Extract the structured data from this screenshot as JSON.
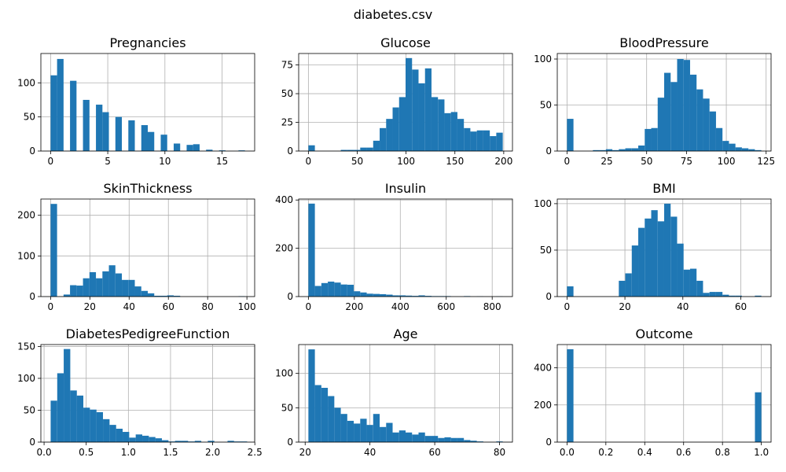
{
  "figure": {
    "title": "diabetes.csv"
  },
  "colors": {
    "bar": "#1f77b4",
    "grid": "#b0b0b0",
    "axis": "#000000"
  },
  "chart_data": [
    {
      "type": "bar",
      "title": "Pregnancies",
      "grid": true,
      "xlim": [
        -0.85,
        17.85
      ],
      "ylim": [
        0,
        143
      ],
      "xticks": [
        0,
        5,
        10,
        15
      ],
      "yticks": [
        0,
        50,
        100
      ],
      "bin_width": 0.567,
      "bins": [
        [
          0,
          111
        ],
        [
          0.567,
          135
        ],
        [
          1.7,
          103
        ],
        [
          2.833,
          75
        ],
        [
          3.967,
          68
        ],
        [
          4.533,
          57
        ],
        [
          5.667,
          50
        ],
        [
          6.8,
          45
        ],
        [
          7.933,
          38
        ],
        [
          8.5,
          28
        ],
        [
          9.633,
          24
        ],
        [
          10.767,
          11
        ],
        [
          11.9,
          9
        ],
        [
          12.467,
          10
        ],
        [
          13.6,
          2
        ],
        [
          14.733,
          1
        ],
        [
          16.433,
          1
        ]
      ]
    },
    {
      "type": "bar",
      "title": "Glucose",
      "grid": true,
      "xlim": [
        -9.95,
        208.95
      ],
      "ylim": [
        0,
        85
      ],
      "xticks": [
        0,
        50,
        100,
        150,
        200
      ],
      "yticks": [
        0,
        25,
        50,
        75
      ],
      "bin_width": 6.633,
      "bins": [
        [
          0,
          5
        ],
        [
          33.167,
          1
        ],
        [
          39.8,
          1
        ],
        [
          46.433,
          1
        ],
        [
          53.067,
          3
        ],
        [
          59.7,
          3
        ],
        [
          66.333,
          9
        ],
        [
          72.967,
          20
        ],
        [
          79.6,
          28
        ],
        [
          86.233,
          38
        ],
        [
          92.867,
          47
        ],
        [
          99.5,
          81
        ],
        [
          106.133,
          71
        ],
        [
          112.767,
          59
        ],
        [
          119.4,
          72
        ],
        [
          126.033,
          47
        ],
        [
          132.667,
          45
        ],
        [
          139.3,
          33
        ],
        [
          145.933,
          34
        ],
        [
          152.567,
          28
        ],
        [
          159.2,
          20
        ],
        [
          165.833,
          17
        ],
        [
          172.467,
          18
        ],
        [
          179.1,
          18
        ],
        [
          185.733,
          13
        ],
        [
          192.367,
          16
        ]
      ]
    },
    {
      "type": "bar",
      "title": "BloodPressure",
      "grid": true,
      "xlim": [
        -6.1,
        128.1
      ],
      "ylim": [
        0,
        106
      ],
      "xticks": [
        0,
        25,
        50,
        75,
        100,
        125
      ],
      "yticks": [
        0,
        50,
        100
      ],
      "bin_width": 4.067,
      "bins": [
        [
          0,
          35
        ],
        [
          16.267,
          1
        ],
        [
          20.333,
          1
        ],
        [
          24.4,
          2
        ],
        [
          28.467,
          1
        ],
        [
          32.533,
          2
        ],
        [
          36.6,
          3
        ],
        [
          40.667,
          3
        ],
        [
          44.733,
          6
        ],
        [
          48.8,
          24
        ],
        [
          52.867,
          25
        ],
        [
          56.933,
          58
        ],
        [
          61,
          85
        ],
        [
          65.067,
          75
        ],
        [
          69.133,
          100
        ],
        [
          73.2,
          99
        ],
        [
          77.267,
          83
        ],
        [
          81.333,
          67
        ],
        [
          85.4,
          57
        ],
        [
          89.467,
          43
        ],
        [
          93.533,
          25
        ],
        [
          97.6,
          11
        ],
        [
          101.667,
          8
        ],
        [
          105.733,
          4
        ],
        [
          109.8,
          3
        ],
        [
          113.867,
          2
        ],
        [
          117.933,
          1
        ]
      ]
    },
    {
      "type": "bar",
      "title": "SkinThickness",
      "grid": true,
      "xlim": [
        -4.95,
        103.95
      ],
      "ylim": [
        0,
        240
      ],
      "xticks": [
        0,
        20,
        40,
        60,
        80,
        100
      ],
      "yticks": [
        0,
        100,
        200
      ],
      "bin_width": 3.3,
      "bins": [
        [
          0,
          228
        ],
        [
          6.6,
          5
        ],
        [
          9.9,
          28
        ],
        [
          13.2,
          27
        ],
        [
          16.5,
          45
        ],
        [
          19.8,
          60
        ],
        [
          23.1,
          45
        ],
        [
          26.4,
          62
        ],
        [
          29.7,
          77
        ],
        [
          33,
          57
        ],
        [
          36.3,
          41
        ],
        [
          39.6,
          41
        ],
        [
          42.9,
          25
        ],
        [
          46.2,
          14
        ],
        [
          49.5,
          8
        ],
        [
          52.8,
          2
        ],
        [
          56.1,
          2
        ],
        [
          59.4,
          3
        ],
        [
          62.7,
          2
        ],
        [
          95.7,
          1
        ]
      ]
    },
    {
      "type": "bar",
      "title": "Insulin",
      "grid": true,
      "xlim": [
        -42.3,
        888.3
      ],
      "ylim": [
        0,
        404
      ],
      "xticks": [
        0,
        200,
        400,
        600,
        800
      ],
      "yticks": [
        0,
        200,
        400
      ],
      "bin_width": 28.2,
      "bins": [
        [
          0,
          385
        ],
        [
          28.2,
          44
        ],
        [
          56.4,
          56
        ],
        [
          84.6,
          62
        ],
        [
          112.8,
          58
        ],
        [
          141,
          50
        ],
        [
          169.2,
          49
        ],
        [
          197.4,
          22
        ],
        [
          225.6,
          17
        ],
        [
          253.8,
          12
        ],
        [
          282,
          11
        ],
        [
          310.2,
          10
        ],
        [
          338.4,
          8
        ],
        [
          366.6,
          5
        ],
        [
          394.8,
          5
        ],
        [
          423,
          4
        ],
        [
          451.2,
          3
        ],
        [
          479.4,
          5
        ],
        [
          507.6,
          3
        ],
        [
          535.8,
          2
        ],
        [
          564,
          2
        ],
        [
          592.2,
          2
        ],
        [
          676.8,
          2
        ],
        [
          733.2,
          1
        ],
        [
          817.8,
          1
        ]
      ]
    },
    {
      "type": "bar",
      "title": "BMI",
      "grid": true,
      "xlim": [
        -3.355,
        70.455
      ],
      "ylim": [
        0,
        105
      ],
      "xticks": [
        0,
        20,
        40,
        60
      ],
      "yticks": [
        0,
        50,
        100
      ],
      "bin_width": 2.237,
      "bins": [
        [
          0,
          11
        ],
        [
          17.89,
          17
        ],
        [
          20.127,
          25
        ],
        [
          22.363,
          55
        ],
        [
          24.6,
          74
        ],
        [
          26.837,
          84
        ],
        [
          29.073,
          93
        ],
        [
          31.31,
          81
        ],
        [
          33.547,
          100
        ],
        [
          35.783,
          86
        ],
        [
          38.02,
          57
        ],
        [
          40.257,
          29
        ],
        [
          42.493,
          30
        ],
        [
          44.73,
          17
        ],
        [
          46.967,
          4
        ],
        [
          49.203,
          5
        ],
        [
          51.44,
          5
        ],
        [
          53.677,
          2
        ],
        [
          55.913,
          1
        ],
        [
          58.15,
          1
        ],
        [
          64.86,
          1
        ]
      ]
    },
    {
      "type": "bar",
      "title": "DiabetesPedigreeFunction",
      "grid": true,
      "xlim": [
        -0.038,
        2.498
      ],
      "ylim": [
        0,
        153
      ],
      "xticks": [
        0.0,
        0.5,
        1.0,
        1.5,
        2.0,
        2.5
      ],
      "yticks": [
        0,
        50,
        100,
        150
      ],
      "bin_width": 0.0777,
      "bins": [
        [
          0.078,
          65
        ],
        [
          0.156,
          108
        ],
        [
          0.233,
          146
        ],
        [
          0.311,
          81
        ],
        [
          0.388,
          73
        ],
        [
          0.466,
          54
        ],
        [
          0.544,
          51
        ],
        [
          0.621,
          47
        ],
        [
          0.699,
          36
        ],
        [
          0.777,
          27
        ],
        [
          0.854,
          21
        ],
        [
          0.932,
          16
        ],
        [
          1.01,
          7
        ],
        [
          1.087,
          12
        ],
        [
          1.165,
          10
        ],
        [
          1.243,
          8
        ],
        [
          1.32,
          6
        ],
        [
          1.398,
          3
        ],
        [
          1.476,
          1
        ],
        [
          1.553,
          2
        ],
        [
          1.631,
          2
        ],
        [
          1.709,
          1
        ],
        [
          1.787,
          2
        ],
        [
          1.942,
          2
        ],
        [
          2.176,
          2
        ],
        [
          2.253,
          1
        ],
        [
          2.331,
          1
        ]
      ]
    },
    {
      "type": "bar",
      "title": "Age",
      "grid": true,
      "xlim": [
        18,
        84
      ],
      "ylim": [
        0,
        142
      ],
      "xticks": [
        20,
        40,
        60,
        80
      ],
      "yticks": [
        0,
        50,
        100
      ],
      "bin_width": 2,
      "bins": [
        [
          21,
          135
        ],
        [
          23,
          83
        ],
        [
          25,
          79
        ],
        [
          27,
          67
        ],
        [
          29,
          50
        ],
        [
          31,
          41
        ],
        [
          33,
          31
        ],
        [
          35,
          27
        ],
        [
          37,
          34
        ],
        [
          39,
          25
        ],
        [
          41,
          41
        ],
        [
          43,
          22
        ],
        [
          45,
          28
        ],
        [
          47,
          14
        ],
        [
          49,
          17
        ],
        [
          51,
          14
        ],
        [
          53,
          11
        ],
        [
          55,
          14
        ],
        [
          57,
          9
        ],
        [
          59,
          9
        ],
        [
          61,
          6
        ],
        [
          63,
          7
        ],
        [
          65,
          6
        ],
        [
          67,
          6
        ],
        [
          69,
          3
        ],
        [
          71,
          2
        ],
        [
          73,
          1
        ],
        [
          79,
          1
        ]
      ]
    },
    {
      "type": "bar",
      "title": "Outcome",
      "grid": true,
      "xlim": [
        -0.05,
        1.05
      ],
      "ylim": [
        0,
        525
      ],
      "xticks": [
        0.0,
        0.2,
        0.4,
        0.6,
        0.8,
        1.0
      ],
      "yticks": [
        0,
        200,
        400
      ],
      "bin_width": 0.0333,
      "bins": [
        [
          0,
          500
        ],
        [
          0.967,
          268
        ]
      ]
    }
  ]
}
